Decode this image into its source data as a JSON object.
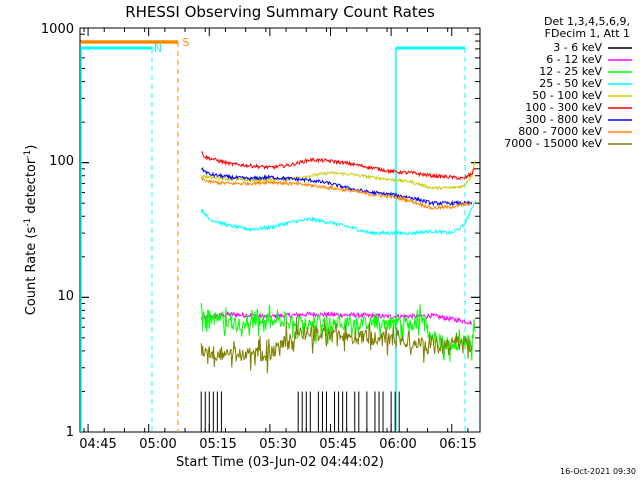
{
  "chart_data": {
    "type": "line",
    "title": "RHESSI Observing Summary Count Rates",
    "xlabel": "Start Time (03-Jun-02 04:44:02)",
    "ylabel_main": "Count Rate (s",
    "ylabel_sup1": "-1",
    "ylabel_mid": " detector",
    "ylabel_sup2": "-1",
    "ylabel_end": ")",
    "yscale": "log",
    "ylim": [
      1,
      1000
    ],
    "xlim_minutes": [
      -2,
      97
    ],
    "x_unit": "minutes after 04:45",
    "x_ticks": [
      {
        "v": 0,
        "label": "04:45"
      },
      {
        "v": 15,
        "label": "05:00"
      },
      {
        "v": 30,
        "label": "05:15"
      },
      {
        "v": 45,
        "label": "05:30"
      },
      {
        "v": 60,
        "label": "05:45"
      },
      {
        "v": 75,
        "label": "06:00"
      },
      {
        "v": 90,
        "label": "06:15"
      }
    ],
    "y_ticks": [
      {
        "v": 1,
        "label": "1"
      },
      {
        "v": 10,
        "label": "10"
      },
      {
        "v": 100,
        "label": "100"
      },
      {
        "v": 1000,
        "label": "1000"
      }
    ],
    "legend": {
      "header1": "Det 1,3,4,5,6,9,",
      "header2": "FDecim 1, Att 1",
      "placement": "right"
    },
    "series": [
      {
        "name": "3 - 6 keV",
        "color": "#000000",
        "x": [
          28,
          29,
          30,
          31,
          32,
          33,
          52,
          53,
          54,
          55,
          57,
          58,
          59,
          61,
          62,
          63,
          64,
          66,
          67,
          69,
          71,
          72,
          73,
          75,
          76,
          77
        ],
        "values": [
          2,
          2,
          2,
          2,
          2,
          2,
          2,
          2,
          2,
          2,
          2,
          2,
          2,
          2,
          2,
          2,
          2,
          2,
          2,
          2,
          2,
          2,
          2,
          2,
          2,
          2
        ],
        "style": "spikes"
      },
      {
        "name": "6 - 12 keV",
        "color": "#ff00ff",
        "x": [
          28,
          35,
          45,
          55,
          65,
          75,
          85,
          95
        ],
        "values": [
          7,
          7.5,
          7.2,
          7.5,
          7.4,
          7.2,
          7.3,
          6.5
        ]
      },
      {
        "name": "12 - 25 keV",
        "color": "#00ff00",
        "x": [
          28,
          35,
          45,
          55,
          65,
          75,
          80,
          83,
          85,
          90,
          95,
          96
        ],
        "values": [
          7.5,
          6.5,
          6.5,
          6.5,
          6.5,
          6.5,
          6.5,
          6.5,
          5,
          4.5,
          4.8,
          6.5
        ]
      },
      {
        "name": "25 - 50 keV",
        "color": "#00ffff",
        "x": [
          28,
          30,
          35,
          40,
          45,
          50,
          55,
          60,
          65,
          70,
          75,
          80,
          85,
          90,
          93,
          95,
          96
        ],
        "values": [
          45,
          38,
          34,
          32,
          33,
          36,
          38,
          36,
          33,
          30,
          30,
          30,
          31,
          30,
          34,
          45,
          55
        ]
      },
      {
        "name": "50 - 100 keV",
        "color": "#cccc00",
        "x": [
          28,
          30,
          35,
          40,
          45,
          50,
          55,
          60,
          65,
          70,
          75,
          80,
          85,
          90,
          93,
          95,
          96
        ],
        "values": [
          80,
          78,
          76,
          74,
          75,
          76,
          80,
          84,
          82,
          78,
          75,
          72,
          65,
          65,
          67,
          80,
          110
        ]
      },
      {
        "name": "100 - 300 keV",
        "color": "#ff0000",
        "x": [
          28,
          29,
          35,
          40,
          45,
          50,
          55,
          60,
          65,
          70,
          75,
          80,
          85,
          90,
          93,
          95,
          96
        ],
        "values": [
          120,
          110,
          98,
          95,
          92,
          96,
          105,
          103,
          98,
          92,
          86,
          84,
          80,
          78,
          76,
          83,
          95
        ]
      },
      {
        "name": "300 - 800 keV",
        "color": "#0000ff",
        "x": [
          28,
          30,
          35,
          40,
          45,
          50,
          55,
          60,
          65,
          70,
          75,
          80,
          85,
          90,
          95
        ],
        "values": [
          90,
          82,
          78,
          76,
          78,
          76,
          74,
          70,
          64,
          60,
          58,
          55,
          50,
          50,
          50
        ]
      },
      {
        "name": "800 - 7000 keV",
        "color": "#ff8800",
        "x": [
          28,
          30,
          35,
          40,
          45,
          50,
          55,
          60,
          65,
          70,
          75,
          80,
          85,
          90,
          95
        ],
        "values": [
          76,
          72,
          70,
          70,
          72,
          70,
          68,
          65,
          62,
          58,
          56,
          52,
          46,
          47,
          50
        ]
      },
      {
        "name": "7000 - 15000 keV",
        "color": "#808000",
        "x": [
          28,
          35,
          45,
          50,
          55,
          65,
          75,
          85,
          90,
          95
        ],
        "values": [
          4,
          3.8,
          3.8,
          5,
          5.5,
          5,
          5,
          4.5,
          4.5,
          4.5
        ]
      }
    ],
    "annotations": [
      {
        "text": "N",
        "color": "#00ffff"
      },
      {
        "text": "S",
        "color": "#ff8800"
      }
    ],
    "timestamp": "16-Oct-2021 09:30"
  }
}
